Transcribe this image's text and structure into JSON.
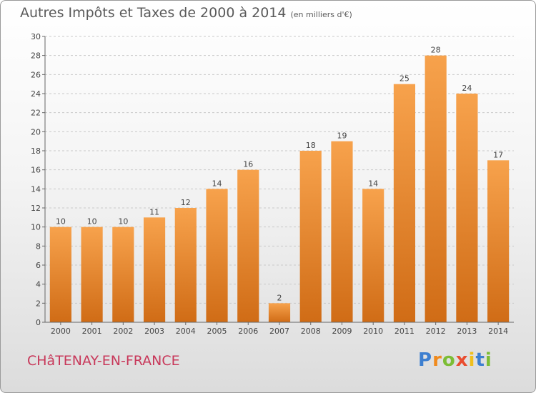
{
  "chart_data": {
    "type": "bar",
    "title": "Autres Impôts et Taxes de 2000 à 2014",
    "subtitle": "(en milliers d'€)",
    "categories": [
      "2000",
      "2001",
      "2002",
      "2003",
      "2004",
      "2005",
      "2006",
      "2007",
      "2008",
      "2009",
      "2010",
      "2011",
      "2012",
      "2013",
      "2014"
    ],
    "values": [
      10,
      10,
      10,
      11,
      12,
      14,
      16,
      2,
      18,
      19,
      14,
      25,
      28,
      24,
      17
    ],
    "data_labels": [
      "10",
      "10",
      "10",
      "11",
      "12",
      "14",
      "16",
      "2",
      "18",
      "19",
      "14",
      "25",
      "28",
      "24",
      "17"
    ],
    "yticks": [
      0,
      2,
      4,
      6,
      8,
      10,
      12,
      14,
      16,
      18,
      20,
      22,
      24,
      26,
      28,
      30
    ],
    "ytick_labels": [
      "0",
      "2",
      "4",
      "6",
      "8",
      "10",
      "12",
      "14",
      "16",
      "18",
      "20",
      "22",
      "24",
      "26",
      "28",
      "30"
    ],
    "ylim": [
      0,
      30
    ],
    "xlabel": "",
    "ylabel": "",
    "grid": "horizontal-dashed",
    "bar_color": "#f0933a"
  },
  "location": "CHâTENAY-EN-FRANCE",
  "brand": {
    "letters": [
      "P",
      "r",
      "o",
      "x",
      "i",
      "t",
      "i"
    ],
    "colors": [
      "#3d7fd0",
      "#f08a1d",
      "#7cbd35",
      "#e94d2f",
      "#f0bf1d",
      "#3d7fd0",
      "#7cbd35"
    ]
  }
}
